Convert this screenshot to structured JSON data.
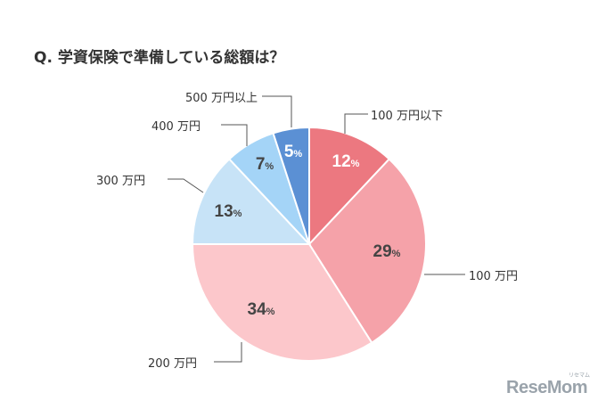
{
  "title": "Q. 学資保険で準備している総額は？",
  "chart_data": {
    "type": "pie",
    "categories": [
      "100 万円以下",
      "100 万円",
      "200 万円",
      "300 万円",
      "400 万円",
      "500 万円以上"
    ],
    "values": [
      12,
      29,
      34,
      13,
      7,
      5
    ],
    "value_suffix": "%",
    "start": "12 o'clock",
    "direction": "clockwise",
    "colors": [
      "#ec7880",
      "#f5a2a9",
      "#fcc7cb",
      "#c7e3f7",
      "#a4d4f7",
      "#5b90d4"
    ],
    "value_label_colors": [
      "#ffffff",
      "#444444",
      "#444444",
      "#444444",
      "#444444",
      "#ffffff"
    ],
    "legend": "leader-line labels"
  },
  "watermark": {
    "text": "ReseMom",
    "ruby": "リセマム"
  }
}
